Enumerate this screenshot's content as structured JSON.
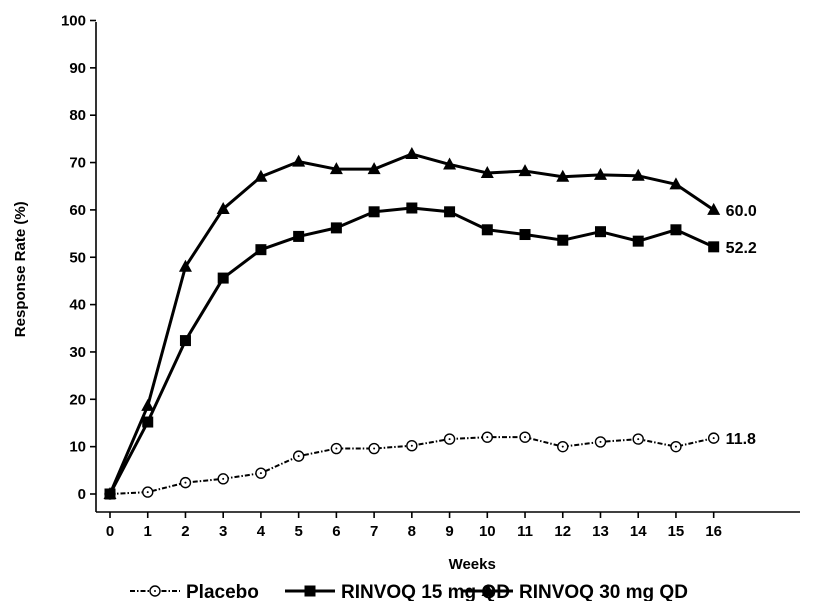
{
  "chart_data": {
    "type": "line",
    "xlabel": "Weeks",
    "ylabel": "Response Rate (%)",
    "xlim": [
      0,
      16
    ],
    "ylim": [
      0,
      100
    ],
    "x_ticks": [
      0,
      1,
      2,
      3,
      4,
      5,
      6,
      7,
      8,
      9,
      10,
      11,
      12,
      13,
      14,
      15,
      16
    ],
    "y_ticks": [
      0,
      10,
      20,
      30,
      40,
      50,
      60,
      70,
      80,
      90,
      100
    ],
    "grid": false,
    "legend_position": "bottom",
    "x": [
      0,
      1,
      2,
      3,
      4,
      5,
      6,
      7,
      8,
      9,
      10,
      11,
      12,
      13,
      14,
      15,
      16
    ],
    "series": [
      {
        "name": "Placebo",
        "marker": "open-circle",
        "line_style": "dash-dot",
        "color": "#000000",
        "values": [
          0,
          0.4,
          2.4,
          3.2,
          4.4,
          8.0,
          9.6,
          9.6,
          10.2,
          11.6,
          12.0,
          12.0,
          10.0,
          11.0,
          11.6,
          10.0,
          11.8
        ],
        "end_label": "11.8"
      },
      {
        "name": "RINVOQ 15 mg QD",
        "marker": "filled-square",
        "line_style": "solid",
        "color": "#000000",
        "values": [
          0,
          15.2,
          32.4,
          45.6,
          51.6,
          54.4,
          56.2,
          59.6,
          60.4,
          59.6,
          55.8,
          54.8,
          53.6,
          55.4,
          53.4,
          55.8,
          52.2
        ],
        "end_label": "52.2"
      },
      {
        "name": "RINVOQ 30 mg QD",
        "marker": "filled-triangle",
        "line_style": "solid",
        "color": "#000000",
        "values": [
          0,
          18.6,
          48.0,
          60.2,
          67.0,
          70.2,
          68.6,
          68.6,
          71.8,
          69.6,
          67.8,
          68.2,
          67.0,
          67.4,
          67.2,
          65.4,
          60.0
        ],
        "end_label": "60.0"
      }
    ]
  }
}
